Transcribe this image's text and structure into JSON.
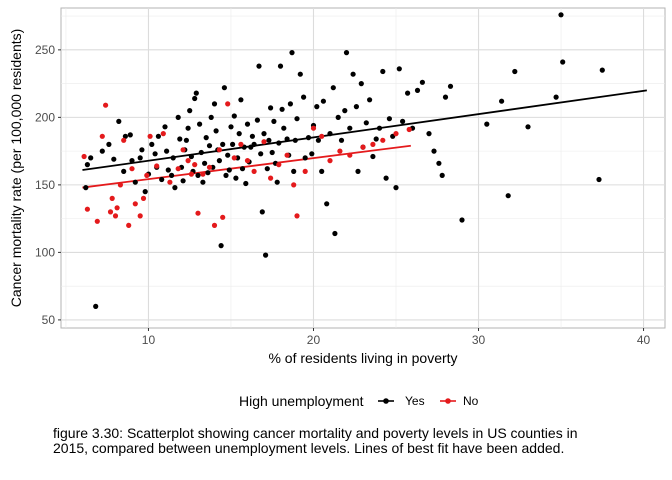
{
  "caption": "figure 3.30: Scatterplot showing cancer mortality and poverty levels in US counties in 2015, compared between unemployment levels. Lines of best fit have been added.",
  "chart_data": {
    "type": "scatter",
    "title": "",
    "xlabel": "% of residents living in poverty",
    "ylabel": "Cancer mortality rate (per 100,000 residents)",
    "xlim": [
      4.7,
      41.3
    ],
    "ylim": [
      44,
      281
    ],
    "x_ticks": [
      10,
      20,
      30,
      40
    ],
    "y_ticks": [
      50,
      100,
      150,
      200,
      250
    ],
    "grid": true,
    "legend": {
      "position": "bottom",
      "title": "High unemployment",
      "entries": [
        {
          "label": "Yes",
          "color": "#000000"
        },
        {
          "label": "No",
          "color": "#e41a1c"
        }
      ]
    },
    "series": [
      {
        "name": "Yes",
        "color": "#000000",
        "fit_line": {
          "x": [
            6.0,
            40.2
          ],
          "y": [
            161,
            220
          ]
        },
        "points": [
          [
            6.2,
            148
          ],
          [
            6.3,
            165
          ],
          [
            6.5,
            170
          ],
          [
            6.8,
            60
          ],
          [
            7.2,
            175
          ],
          [
            7.6,
            180
          ],
          [
            7.9,
            169
          ],
          [
            8.2,
            197
          ],
          [
            8.5,
            160
          ],
          [
            8.6,
            186
          ],
          [
            8.9,
            187
          ],
          [
            9.0,
            168
          ],
          [
            9.2,
            152
          ],
          [
            9.5,
            170
          ],
          [
            9.6,
            176
          ],
          [
            9.8,
            145
          ],
          [
            10.0,
            158
          ],
          [
            10.2,
            180
          ],
          [
            10.4,
            173
          ],
          [
            10.5,
            163
          ],
          [
            10.6,
            186
          ],
          [
            10.8,
            154
          ],
          [
            11.0,
            193
          ],
          [
            11.1,
            175
          ],
          [
            11.2,
            161
          ],
          [
            11.4,
            157
          ],
          [
            11.5,
            170
          ],
          [
            11.6,
            148
          ],
          [
            11.8,
            200
          ],
          [
            11.9,
            184
          ],
          [
            12.0,
            163
          ],
          [
            12.1,
            153
          ],
          [
            12.2,
            176
          ],
          [
            12.3,
            183
          ],
          [
            12.4,
            192
          ],
          [
            12.5,
            205
          ],
          [
            12.6,
            171
          ],
          [
            12.7,
            160
          ],
          [
            12.8,
            214
          ],
          [
            12.9,
            218
          ],
          [
            13.0,
            157
          ],
          [
            13.1,
            195
          ],
          [
            13.2,
            174
          ],
          [
            13.3,
            152
          ],
          [
            13.4,
            166
          ],
          [
            13.5,
            185
          ],
          [
            13.6,
            159
          ],
          [
            13.7,
            179
          ],
          [
            13.8,
            200
          ],
          [
            13.9,
            163
          ],
          [
            14.0,
            210
          ],
          [
            14.1,
            190
          ],
          [
            14.2,
            176
          ],
          [
            14.3,
            168
          ],
          [
            14.4,
            105
          ],
          [
            14.5,
            180
          ],
          [
            14.6,
            222
          ],
          [
            14.7,
            157
          ],
          [
            14.8,
            172
          ],
          [
            14.9,
            161
          ],
          [
            15.0,
            193
          ],
          [
            15.1,
            180
          ],
          [
            15.2,
            201
          ],
          [
            15.3,
            155
          ],
          [
            15.4,
            170
          ],
          [
            15.5,
            188
          ],
          [
            15.6,
            213
          ],
          [
            15.7,
            162
          ],
          [
            15.8,
            178
          ],
          [
            15.9,
            151
          ],
          [
            16.0,
            195
          ],
          [
            16.1,
            167
          ],
          [
            16.2,
            178
          ],
          [
            16.3,
            186
          ],
          [
            16.4,
            180
          ],
          [
            16.6,
            198
          ],
          [
            16.7,
            238
          ],
          [
            16.8,
            173
          ],
          [
            16.9,
            130
          ],
          [
            17.0,
            188
          ],
          [
            17.1,
            98
          ],
          [
            17.2,
            162
          ],
          [
            17.3,
            183
          ],
          [
            17.4,
            207
          ],
          [
            17.5,
            174
          ],
          [
            17.6,
            197
          ],
          [
            17.7,
            166
          ],
          [
            17.8,
            152
          ],
          [
            17.9,
            181
          ],
          [
            18.0,
            238
          ],
          [
            18.1,
            206
          ],
          [
            18.2,
            192
          ],
          [
            18.4,
            184
          ],
          [
            18.5,
            172
          ],
          [
            18.6,
            210
          ],
          [
            18.7,
            248
          ],
          [
            18.8,
            160
          ],
          [
            18.9,
            183
          ],
          [
            19.0,
            199
          ],
          [
            19.2,
            232
          ],
          [
            19.4,
            215
          ],
          [
            19.5,
            170
          ],
          [
            19.7,
            185
          ],
          [
            19.9,
            173
          ],
          [
            20.0,
            194
          ],
          [
            20.2,
            208
          ],
          [
            20.3,
            183
          ],
          [
            20.5,
            160
          ],
          [
            20.6,
            212
          ],
          [
            20.8,
            136
          ],
          [
            21.0,
            188
          ],
          [
            21.2,
            222
          ],
          [
            21.3,
            114
          ],
          [
            21.5,
            200
          ],
          [
            21.7,
            183
          ],
          [
            21.9,
            205
          ],
          [
            22.0,
            248
          ],
          [
            22.2,
            192
          ],
          [
            22.4,
            232
          ],
          [
            22.6,
            208
          ],
          [
            22.7,
            160
          ],
          [
            22.9,
            225
          ],
          [
            23.0,
            178
          ],
          [
            23.2,
            196
          ],
          [
            23.4,
            213
          ],
          [
            23.6,
            171
          ],
          [
            23.8,
            184
          ],
          [
            24.0,
            192
          ],
          [
            24.2,
            234
          ],
          [
            24.4,
            155
          ],
          [
            24.6,
            199
          ],
          [
            24.8,
            186
          ],
          [
            25.0,
            148
          ],
          [
            25.2,
            236
          ],
          [
            25.4,
            197
          ],
          [
            25.7,
            218
          ],
          [
            26.0,
            192
          ],
          [
            26.3,
            220
          ],
          [
            26.6,
            226
          ],
          [
            27.0,
            188
          ],
          [
            27.3,
            175
          ],
          [
            27.6,
            166
          ],
          [
            27.8,
            157
          ],
          [
            28.0,
            215
          ],
          [
            28.3,
            223
          ],
          [
            29.0,
            124
          ],
          [
            30.5,
            195
          ],
          [
            31.4,
            212
          ],
          [
            31.8,
            142
          ],
          [
            32.2,
            234
          ],
          [
            33.0,
            193
          ],
          [
            34.7,
            215
          ],
          [
            35.0,
            276
          ],
          [
            35.1,
            241
          ],
          [
            37.3,
            154
          ],
          [
            37.5,
            235
          ]
        ]
      },
      {
        "name": "No",
        "color": "#e41a1c",
        "fit_line": {
          "x": [
            6.0,
            25.9
          ],
          "y": [
            148,
            179
          ]
        },
        "points": [
          [
            6.1,
            171
          ],
          [
            6.3,
            132
          ],
          [
            6.9,
            123
          ],
          [
            7.2,
            186
          ],
          [
            7.4,
            209
          ],
          [
            7.7,
            130
          ],
          [
            7.8,
            140
          ],
          [
            8.0,
            127
          ],
          [
            8.1,
            133
          ],
          [
            8.3,
            150
          ],
          [
            8.5,
            183
          ],
          [
            8.8,
            120
          ],
          [
            9.0,
            162
          ],
          [
            9.2,
            136
          ],
          [
            9.5,
            127
          ],
          [
            9.7,
            140
          ],
          [
            9.9,
            157
          ],
          [
            10.1,
            186
          ],
          [
            10.5,
            164
          ],
          [
            10.9,
            188
          ],
          [
            11.3,
            152
          ],
          [
            11.8,
            162
          ],
          [
            12.1,
            176
          ],
          [
            12.4,
            168
          ],
          [
            12.6,
            158
          ],
          [
            12.8,
            165
          ],
          [
            13.0,
            129
          ],
          [
            13.3,
            158
          ],
          [
            13.7,
            163
          ],
          [
            14.0,
            120
          ],
          [
            14.3,
            176
          ],
          [
            14.5,
            126
          ],
          [
            14.8,
            210
          ],
          [
            15.2,
            170
          ],
          [
            15.6,
            180
          ],
          [
            16.0,
            168
          ],
          [
            16.4,
            160
          ],
          [
            17.0,
            182
          ],
          [
            17.4,
            155
          ],
          [
            17.9,
            165
          ],
          [
            18.4,
            172
          ],
          [
            18.8,
            150
          ],
          [
            19.0,
            127
          ],
          [
            19.5,
            160
          ],
          [
            20.0,
            192
          ],
          [
            20.5,
            186
          ],
          [
            21.0,
            168
          ],
          [
            21.6,
            175
          ],
          [
            22.2,
            172
          ],
          [
            23.0,
            178
          ],
          [
            23.6,
            180
          ],
          [
            24.2,
            183
          ],
          [
            25.0,
            188
          ],
          [
            25.8,
            191
          ]
        ]
      }
    ]
  }
}
